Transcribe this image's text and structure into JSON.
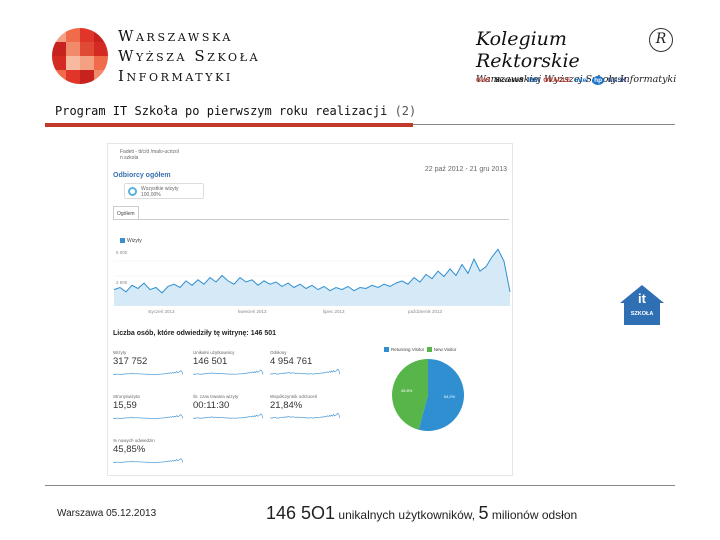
{
  "header": {
    "university_name_lines": [
      "Warszawska",
      "Wyższa Szkoła",
      "Informatyki"
    ],
    "kolegium_title": "Kolegium Rektorskie",
    "kolegium_seal": "R",
    "kolegium_subtitle": "Warszawskiej Wyższej Szkoły Informatyki",
    "sponsors": [
      "GUS",
      "Microsoft",
      "IBM",
      "ORACLE",
      "Intel",
      "hp",
      "NASK"
    ]
  },
  "slide": {
    "title": "Program IT Szkoła po pierwszym roku realizacji",
    "title_number": "(2)"
  },
  "analytics": {
    "breadcrumb_line1": "Fadeti - tt/c/d /malo-ucrizol",
    "breadcrumb_line2": "n szkola",
    "panel_title": "Odbiorcy ogółem",
    "date_range": "22 paź 2012 - 21 gru 2013",
    "dimension_line1": "Wszystkie wizyty",
    "dimension_line2": "100,00%",
    "tab_label": "Ogólem",
    "legend_label": "Wizyty",
    "y_ticks": [
      "5 000",
      "2 500"
    ],
    "x_ticks": [
      "styczeń 2013",
      "kwiecień 2013",
      "lipiec 2013",
      "październik 2013"
    ],
    "visitors_heading": "Liczba osób, które odwiedziły tę witrynę: 146 501",
    "pie_legend": [
      "Returning Visitor",
      "New Visitor"
    ],
    "metrics": [
      {
        "label": "Wizyty",
        "value": "317 752"
      },
      {
        "label": "Unikalni użytkownicy",
        "value": "146 501"
      },
      {
        "label": "Odsłony",
        "value": "4 954 761"
      },
      {
        "label": "Strony/wizyta",
        "value": "15,59"
      },
      {
        "label": "Śr. czas trwania wizyty",
        "value": "00:11:30"
      },
      {
        "label": "Współczynnik odrzuceń",
        "value": "21,84%"
      },
      {
        "label": "% nowych odwiedzin",
        "value": "45,85%"
      }
    ],
    "pie_percentages": {
      "returning": "54,2%",
      "new": "45,8%"
    }
  },
  "chart_data": [
    {
      "type": "area",
      "title": "",
      "series": [
        {
          "name": "Wizyty",
          "values": [
            1500,
            1700,
            1300,
            1900,
            1600,
            2100,
            1500,
            1700,
            1200,
            1800,
            2000,
            1700,
            2300,
            1900,
            2400,
            2000,
            2600,
            2200,
            2800,
            2300,
            2000,
            2600,
            2200,
            2400,
            1900,
            2300,
            2000,
            2200,
            1800,
            2100,
            1700,
            2000,
            1600,
            1900,
            1500,
            1800,
            1400,
            1700,
            1500,
            1800,
            1400,
            1700,
            1600,
            1900,
            1700,
            2000,
            1800,
            2100,
            2300,
            2000,
            2600,
            2200,
            2900,
            2500,
            3200,
            2700,
            3400,
            2800,
            3800,
            3000,
            4300,
            3200,
            3600,
            4500,
            5200,
            4100,
            1300
          ]
        }
      ],
      "ylim": [
        0,
        5500
      ],
      "xlabel": "",
      "ylabel": ""
    },
    {
      "type": "pie",
      "categories": [
        "Returning Visitor",
        "New Visitor"
      ],
      "values": [
        54.2,
        45.8
      ],
      "colors": [
        "#2f8fd0",
        "#57b54a"
      ]
    }
  ],
  "badge": {
    "main": "it",
    "sub": "SZKOŁA",
    "color": "#2f6fb3"
  },
  "footer": {
    "date": "Warszawa 05.12.2013",
    "caption_n1": "146 5O1",
    "caption_t1": " unikalnych użytkowników, ",
    "caption_n2": "5",
    "caption_t2": " milionów odsłon"
  },
  "colors": {
    "accent_red": "#c0392b",
    "chart_blue": "#2f8fd0",
    "chart_green": "#57b54a"
  }
}
